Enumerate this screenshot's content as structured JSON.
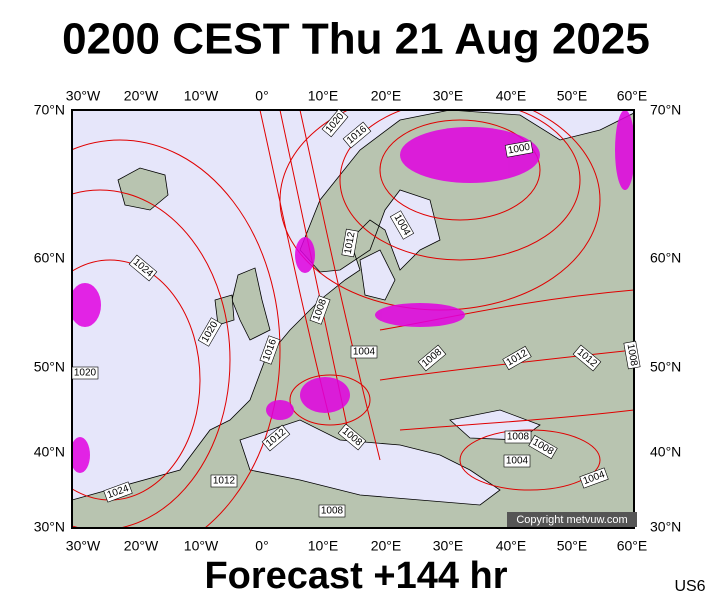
{
  "title": "0200 CEST Thu 21 Aug 2025",
  "subtitle": "Forecast +144 hr",
  "code": "US6",
  "copyright": "Copyright metvuw.com",
  "lon_labels": [
    "30°W",
    "20°W",
    "10°W",
    "0°",
    "10°E",
    "20°E",
    "30°E",
    "40°E",
    "50°E",
    "60°E"
  ],
  "lat_labels": [
    "70°N",
    "60°N",
    "50°N",
    "40°N",
    "30°N"
  ],
  "isobar_labels": [
    "1020",
    "1016",
    "1000",
    "1004",
    "1012",
    "1024",
    "1020",
    "1016",
    "1020",
    "1008",
    "1004",
    "1008",
    "1012",
    "1012",
    "1008",
    "1012",
    "1008",
    "1012",
    "1024",
    "1008",
    "1008",
    "1008",
    "1004",
    "1004"
  ]
}
